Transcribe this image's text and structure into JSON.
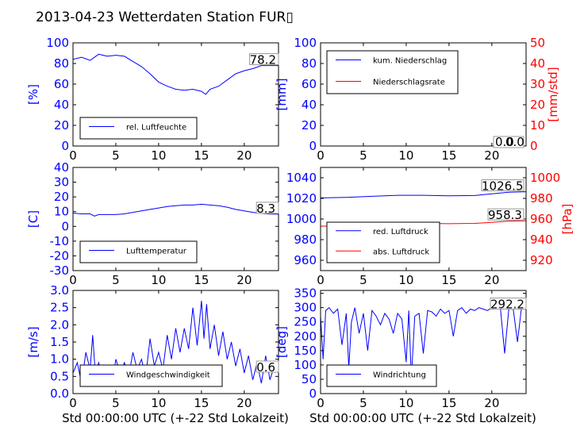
{
  "figure_title": "2013-04-23 Wetterdaten Station FUR▯",
  "x_axis_label": "Std 00:00:00 UTC (+-22 Std Lokalzeit)",
  "chart_data": [
    {
      "id": "humidity",
      "type": "line",
      "xlim": [
        0,
        24
      ],
      "ylim": [
        0,
        100
      ],
      "yticks": [
        0,
        20,
        40,
        60,
        80,
        100
      ],
      "xticks": [
        0,
        5,
        10,
        15,
        20
      ],
      "ylabel": "[%]",
      "ylabel_color": "#0000ff",
      "legend_loc": "lower-left",
      "annotation": "78.2",
      "series": [
        {
          "name": "rel. Luftfeuchte",
          "color": "#0000ff",
          "x": [
            0,
            1,
            2,
            2.5,
            3,
            4,
            5,
            6,
            7,
            8,
            9,
            10,
            11,
            12,
            13,
            14,
            15,
            15.5,
            16,
            17,
            18,
            19,
            20,
            21,
            22,
            23,
            24
          ],
          "y": [
            84,
            86,
            83,
            86,
            89,
            87,
            88,
            87,
            82,
            77,
            70,
            62,
            58,
            55,
            54,
            55,
            53,
            50,
            55,
            58,
            64,
            70,
            73,
            75,
            78,
            78,
            78
          ]
        }
      ]
    },
    {
      "id": "precip",
      "type": "line",
      "xlim": [
        0,
        24
      ],
      "ylim": [
        0,
        100
      ],
      "y2lim": [
        0,
        50
      ],
      "yticks": [
        0,
        20,
        40,
        60,
        80,
        100
      ],
      "y2ticks": [
        0,
        10,
        20,
        30,
        40,
        50
      ],
      "xticks": [
        0,
        5,
        10,
        15,
        20
      ],
      "ylabel": "[mm]",
      "ylabel_color": "#0000ff",
      "y2label": "[mm/std]",
      "y2label_color": "#ff0000",
      "legend_loc": "upper-left",
      "annotation": "0.0",
      "annotation2": "0.0",
      "series": [
        {
          "name": "kum. Niederschlag",
          "color": "#0000ff",
          "axis": "left",
          "x": [
            0,
            24
          ],
          "y": [
            0,
            0
          ]
        },
        {
          "name": "Niederschlagsrate",
          "color": "#ff0000",
          "axis": "right",
          "x": [
            0,
            24
          ],
          "y": [
            0,
            0
          ]
        }
      ]
    },
    {
      "id": "temperature",
      "type": "line",
      "xlim": [
        0,
        24
      ],
      "ylim": [
        -30,
        40
      ],
      "yticks": [
        -30,
        -20,
        -10,
        0,
        10,
        20,
        30,
        40
      ],
      "xticks": [
        0,
        5,
        10,
        15,
        20
      ],
      "ylabel": "[C]",
      "ylabel_color": "#0000ff",
      "legend_loc": "lower-left",
      "annotation": "8.3",
      "series": [
        {
          "name": "Lufttemperatur",
          "color": "#0000ff",
          "x": [
            0,
            1,
            2,
            2.5,
            3,
            4,
            5,
            6,
            7,
            8,
            9,
            10,
            11,
            12,
            13,
            14,
            15,
            16,
            17,
            18,
            19,
            20,
            21,
            22,
            23,
            24
          ],
          "y": [
            9,
            8.5,
            8.5,
            7,
            8,
            8,
            8,
            8.5,
            9.5,
            10.5,
            11.5,
            12.5,
            13.5,
            14,
            14.5,
            14.5,
            15,
            14.5,
            14,
            13,
            11.5,
            10.5,
            9.5,
            8.8,
            8.4,
            8.3
          ]
        }
      ]
    },
    {
      "id": "pressure",
      "type": "line",
      "xlim": [
        0,
        24
      ],
      "ylim": [
        950,
        1050
      ],
      "y2lim": [
        910,
        1010
      ],
      "yticks": [
        960,
        980,
        1000,
        1020,
        1040
      ],
      "y2ticks": [
        920,
        940,
        960,
        980,
        1000
      ],
      "xticks": [
        0,
        5,
        10,
        15,
        20
      ],
      "ylabel": "[hPa]",
      "ylabel_color": "#ff0000",
      "legend_loc": "lower-left",
      "annotation": "1026.5",
      "annotation2": "958.3",
      "series": [
        {
          "name": "red. Luftdruck",
          "color": "#0000ff",
          "axis": "left",
          "x": [
            0,
            3,
            6,
            9,
            12,
            15,
            18,
            20,
            22,
            24
          ],
          "y": [
            1020.5,
            1021,
            1022,
            1023,
            1023,
            1022.5,
            1022.8,
            1024.5,
            1026,
            1026.5
          ]
        },
        {
          "name": "abs. Luftdruck",
          "color": "#ff0000",
          "axis": "right",
          "x": [
            0,
            3,
            6,
            9,
            12,
            15,
            18,
            20,
            22,
            24
          ],
          "y": [
            953,
            953.5,
            954.5,
            955.5,
            955.8,
            955.5,
            955.8,
            956.8,
            958,
            958.3
          ]
        }
      ]
    },
    {
      "id": "windspeed",
      "type": "line",
      "xlim": [
        0,
        24
      ],
      "ylim": [
        0,
        3.0
      ],
      "yticks": [
        0.0,
        0.5,
        1.0,
        1.5,
        2.0,
        2.5,
        3.0
      ],
      "xticks": [
        0,
        5,
        10,
        15,
        20
      ],
      "ylabel": "[m/s]",
      "ylabel_color": "#0000ff",
      "legend_loc": "lower-left",
      "annotation": "0.6",
      "series": [
        {
          "name": "Windgeschwindigkeit",
          "color": "#0000ff",
          "x": [
            0,
            0.5,
            1,
            1.5,
            2,
            2.3,
            2.6,
            3,
            3.5,
            4,
            4.5,
            5,
            5.5,
            6,
            6.5,
            7,
            7.5,
            8,
            8.5,
            9,
            9.5,
            10,
            10.5,
            11,
            11.5,
            12,
            12.5,
            13,
            13.5,
            14,
            14.5,
            15,
            15.3,
            15.6,
            16,
            16.5,
            17,
            17.5,
            18,
            18.5,
            19,
            19.5,
            20,
            20.5,
            21,
            21.5,
            22,
            22.5,
            23,
            23.5,
            24
          ],
          "y": [
            0.6,
            0.9,
            0.3,
            1.2,
            0.7,
            1.7,
            0.6,
            0.9,
            0.4,
            0.8,
            0.2,
            1.0,
            0.6,
            0.9,
            0.5,
            1.2,
            0.7,
            1.0,
            0.5,
            1.6,
            0.8,
            1.2,
            0.7,
            1.7,
            1.0,
            1.9,
            1.2,
            1.9,
            1.3,
            2.5,
            1.4,
            2.7,
            1.6,
            2.6,
            1.3,
            2.0,
            1.1,
            1.8,
            1.0,
            1.5,
            0.8,
            1.3,
            0.6,
            1.1,
            0.4,
            0.9,
            0.3,
            1.1,
            0.4,
            0.8,
            0.6
          ]
        }
      ]
    },
    {
      "id": "winddir",
      "type": "line",
      "xlim": [
        0,
        24
      ],
      "ylim": [
        0,
        360
      ],
      "yticks": [
        0,
        50,
        100,
        150,
        200,
        250,
        300,
        350
      ],
      "xticks": [
        0,
        5,
        10,
        15,
        20
      ],
      "ylabel": "[deg]",
      "ylabel_color": "#0000ff",
      "legend_loc": "lower-left",
      "annotation": "292.2",
      "series": [
        {
          "name": "Windrichtung",
          "color": "#0000ff",
          "x": [
            0,
            0.3,
            0.6,
            1,
            1.5,
            2,
            2.5,
            3,
            3.3,
            3.6,
            4,
            4.5,
            5,
            5.5,
            6,
            6.5,
            7,
            7.5,
            8,
            8.5,
            9,
            9.5,
            10,
            10.3,
            10.6,
            11,
            11.5,
            12,
            12.5,
            13,
            13.5,
            14,
            14.5,
            15,
            15.5,
            16,
            16.5,
            17,
            17.5,
            18,
            18.5,
            19,
            19.5,
            20,
            20.5,
            21,
            21.5,
            22,
            22.5,
            23,
            23.5,
            24
          ],
          "y": [
            270,
            120,
            290,
            300,
            280,
            295,
            170,
            280,
            90,
            250,
            300,
            210,
            280,
            150,
            290,
            270,
            240,
            280,
            260,
            210,
            280,
            260,
            110,
            290,
            50,
            270,
            280,
            140,
            290,
            285,
            270,
            295,
            280,
            290,
            200,
            290,
            300,
            280,
            295,
            290,
            300,
            295,
            290,
            300,
            295,
            300,
            140,
            300,
            295,
            180,
            310,
            292
          ]
        }
      ]
    }
  ]
}
